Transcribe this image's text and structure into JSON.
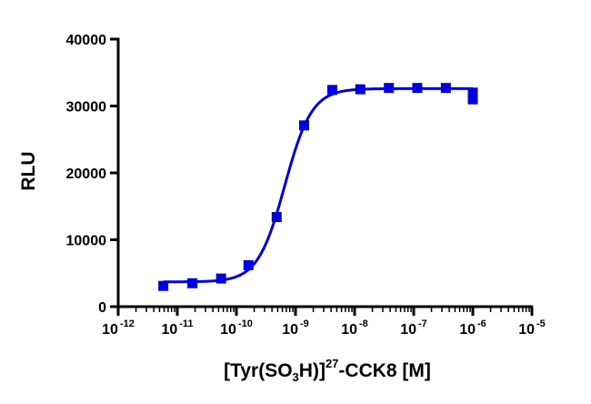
{
  "chart_data": {
    "type": "scatter",
    "title": "",
    "xlabel": {
      "parts": [
        {
          "text": "[Tyr(SO",
          "style": "normal"
        },
        {
          "text": "3",
          "style": "sub"
        },
        {
          "text": "H)]",
          "style": "normal"
        },
        {
          "text": "27",
          "style": "sup"
        },
        {
          "text": "-CCK8 [M]",
          "style": "normal"
        }
      ]
    },
    "ylabel": "RLU",
    "x_scale": "log10",
    "xlim": [
      1e-12,
      1e-05
    ],
    "ylim": [
      0,
      40000
    ],
    "x_ticks": [
      {
        "base": "10",
        "exp": "-12",
        "value": 1e-12
      },
      {
        "base": "10",
        "exp": "-11",
        "value": 1e-11
      },
      {
        "base": "10",
        "exp": "-10",
        "value": 1e-10
      },
      {
        "base": "10",
        "exp": "-9",
        "value": 1e-09
      },
      {
        "base": "10",
        "exp": "-8",
        "value": 1e-08
      },
      {
        "base": "10",
        "exp": "-7",
        "value": 1e-07
      },
      {
        "base": "10",
        "exp": "-6",
        "value": 1e-06
      },
      {
        "base": "10",
        "exp": "-5",
        "value": 1e-05
      }
    ],
    "y_ticks": [
      "0",
      "10000",
      "20000",
      "30000",
      "40000"
    ],
    "grid": false,
    "color": "#0000e0",
    "series": [
      {
        "marker": "square",
        "points": [
          {
            "x": 5.8e-12,
            "y": 3100
          },
          {
            "x": 1.8e-11,
            "y": 3500
          },
          {
            "x": 5.5e-11,
            "y": 4200
          },
          {
            "x": 1.6e-10,
            "y": 6200
          },
          {
            "x": 4.8e-10,
            "y": 13400
          },
          {
            "x": 1.4e-09,
            "y": 27100
          },
          {
            "x": 4.2e-09,
            "y": 32400
          },
          {
            "x": 1.25e-08,
            "y": 32500
          },
          {
            "x": 3.8e-08,
            "y": 32700
          },
          {
            "x": 1.15e-07,
            "y": 32700
          },
          {
            "x": 3.5e-07,
            "y": 32700
          },
          {
            "x": 1e-06,
            "y": 32000
          },
          {
            "x": 1e-06,
            "y": 31000
          }
        ]
      }
    ],
    "fit": {
      "model": "four-parameter-logistic",
      "bottom": 3700,
      "top": 32600,
      "log_ec50": -9.18,
      "hill": 1.9,
      "x_range": [
        5.8e-12,
        1e-06
      ]
    }
  }
}
